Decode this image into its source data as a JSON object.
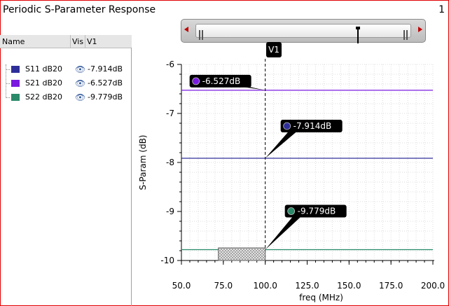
{
  "window": {
    "title": "Periodic S-Parameter Response",
    "page": "1"
  },
  "legend": {
    "header": {
      "name": "Name",
      "vis": "Vis",
      "marker": "V1"
    },
    "rows": [
      {
        "name": "S11 dB20",
        "value": "-7.914dB",
        "color": "#2e2e9a"
      },
      {
        "name": "S21 dB20",
        "value": "-6.527dB",
        "color": "#7a1ae0"
      },
      {
        "name": "S22 dB20",
        "value": "-9.779dB",
        "color": "#2a8a6a"
      }
    ]
  },
  "marker": {
    "label": "V1",
    "x": 100.0
  },
  "chart_data": {
    "type": "line",
    "xlabel": "freq (MHz)",
    "ylabel": "S-Param (dB)",
    "xlim": [
      50.0,
      200.0
    ],
    "ylim": [
      -10,
      -6
    ],
    "xticks": [
      "50.0",
      "75.0",
      "100.0",
      "125.0",
      "150.0",
      "175.0",
      "200.0"
    ],
    "yticks": [
      "-6",
      "-7",
      "-8",
      "-9",
      "-10"
    ],
    "grid": true,
    "series": [
      {
        "name": "S11 dB20",
        "x": [
          50.0,
          200.0
        ],
        "y": [
          -7.914,
          -7.914
        ],
        "color": "#2e2e9a",
        "marker_label": "-7.914dB"
      },
      {
        "name": "S21 dB20",
        "x": [
          50.0,
          200.0
        ],
        "y": [
          -6.527,
          -6.527
        ],
        "color": "#7a1ae0",
        "marker_label": "-6.527dB"
      },
      {
        "name": "S22 dB20",
        "x": [
          50.0,
          200.0
        ],
        "y": [
          -9.779,
          -9.779
        ],
        "color": "#2a8a6a",
        "marker_label": "-9.779dB"
      }
    ]
  }
}
